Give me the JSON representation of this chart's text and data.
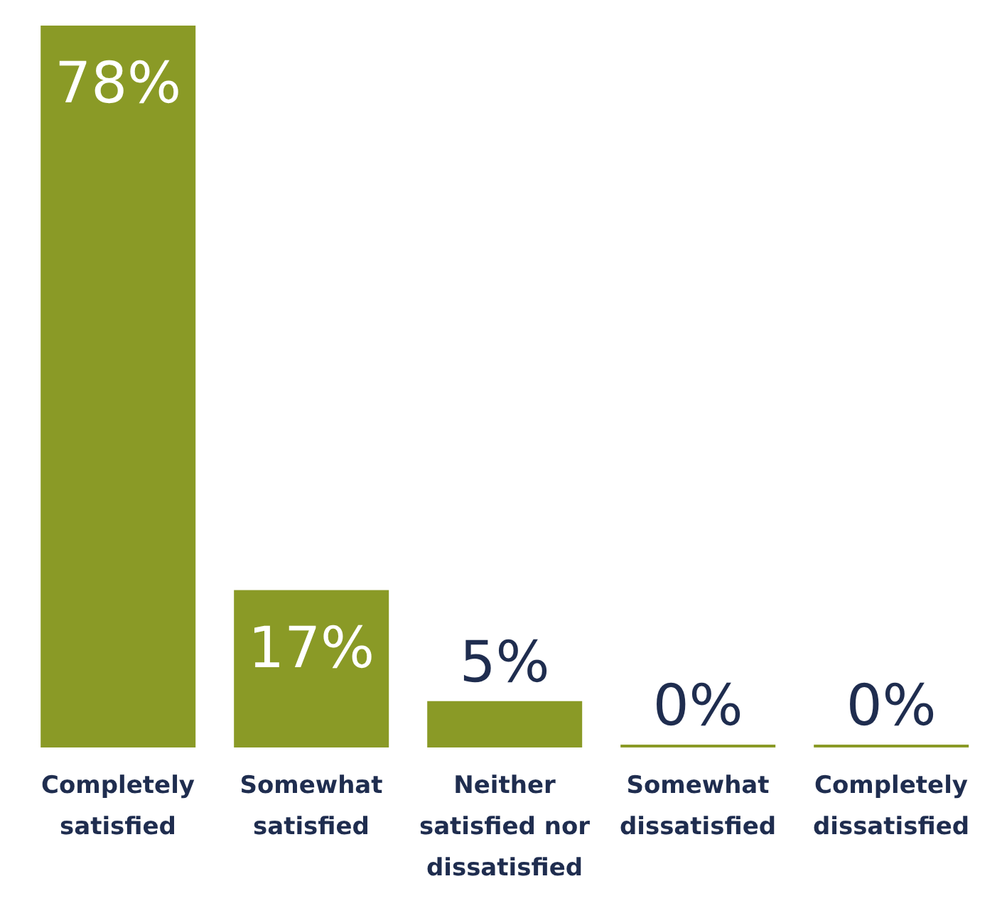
{
  "chart_data": {
    "type": "bar",
    "categories": [
      "Completely satisfied",
      "Somewhat satisfied",
      "Neither satisfied nor dissatisfied",
      "Somewhat dissatisfied",
      "Completely dissatisfied"
    ],
    "values": [
      78,
      17,
      5,
      0,
      0
    ],
    "value_labels": [
      "78%",
      "17%",
      "5%",
      "0%",
      "0%"
    ],
    "color": "#8a9a26"
  }
}
